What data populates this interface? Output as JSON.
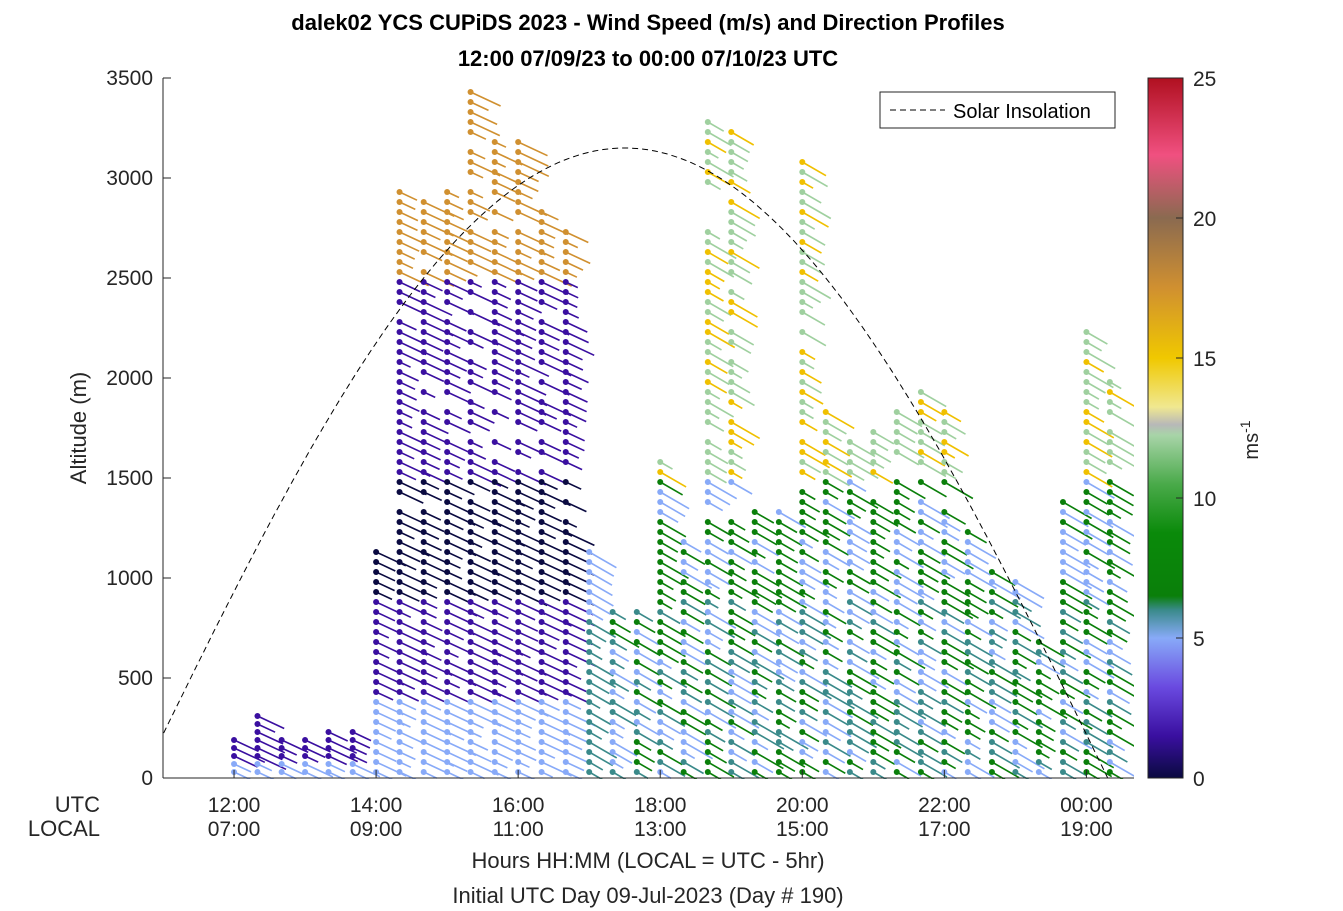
{
  "chart_data": {
    "type": "scatter",
    "title": "dalek02 YCS CUPiDS 2023 - Wind Speed (m/s) and Direction Profiles",
    "subtitle": "12:00 07/09/23 to 00:00 07/10/23  UTC",
    "ylabel": "Altitude (m)",
    "xlabel": "Hours HH:MM  (LOCAL = UTC - 5hr)",
    "xlabel2": "Initial UTC Day 09-Jul-2023 (Day # 190)",
    "row_labels": [
      "UTC",
      "LOCAL"
    ],
    "ylim": [
      0,
      3500
    ],
    "yticks": [
      "0",
      "500",
      "1000",
      "1500",
      "2000",
      "2500",
      "3000",
      "3500"
    ],
    "xticks_utc": [
      "12:00",
      "14:00",
      "16:00",
      "18:00",
      "20:00",
      "22:00",
      "00:00"
    ],
    "xticks_local": [
      "07:00",
      "09:00",
      "11:00",
      "13:00",
      "15:00",
      "17:00",
      "19:00"
    ],
    "legend": {
      "entry": "Solar Insolation",
      "placement": "top-right"
    },
    "colorbar": {
      "label": "ms-1",
      "min": 0,
      "max": 25,
      "ticks": [
        "0",
        "5",
        "10",
        "15",
        "20",
        "25"
      ]
    },
    "solar_peak_altitude": 3150,
    "profiles": [
      {
        "t": 12.0,
        "top": 200
      },
      {
        "t": 12.33,
        "top": 340
      },
      {
        "t": 12.67,
        "top": 200
      },
      {
        "t": 13.0,
        "top": 200
      },
      {
        "t": 13.33,
        "top": 250
      },
      {
        "t": 13.67,
        "top": 250
      },
      {
        "t": 14.0,
        "top": 1170
      },
      {
        "t": 14.33,
        "top": 2950
      },
      {
        "t": 14.67,
        "top": 2900
      },
      {
        "t": 15.0,
        "top": 2950
      },
      {
        "t": 15.33,
        "top": 3430
      },
      {
        "t": 15.67,
        "top": 3200
      },
      {
        "t": 16.0,
        "top": 3200
      },
      {
        "t": 16.33,
        "top": 2850
      },
      {
        "t": 16.67,
        "top": 2750
      },
      {
        "t": 17.0,
        "top": 1150
      },
      {
        "t": 17.33,
        "top": 870
      },
      {
        "t": 17.67,
        "top": 830
      },
      {
        "t": 18.0,
        "top": 1600
      },
      {
        "t": 18.33,
        "top": 1200
      },
      {
        "t": 18.67,
        "top": 3280
      },
      {
        "t": 19.0,
        "top": 3230
      },
      {
        "t": 19.33,
        "top": 1350
      },
      {
        "t": 19.67,
        "top": 1350
      },
      {
        "t": 20.0,
        "top": 3100
      },
      {
        "t": 20.33,
        "top": 1850
      },
      {
        "t": 20.67,
        "top": 1700
      },
      {
        "t": 21.0,
        "top": 1750
      },
      {
        "t": 21.33,
        "top": 1850
      },
      {
        "t": 21.67,
        "top": 1970
      },
      {
        "t": 22.0,
        "top": 1850
      },
      {
        "t": 22.33,
        "top": 1250
      },
      {
        "t": 22.67,
        "top": 1050
      },
      {
        "t": 23.0,
        "top": 980
      },
      {
        "t": 23.33,
        "top": 700
      },
      {
        "t": 23.67,
        "top": 1400
      },
      {
        "t": 24.0,
        "top": 2230
      },
      {
        "t": 24.33,
        "top": 2000
      }
    ]
  },
  "colors": {
    "axis": "#262626",
    "solar_line": "#000000",
    "colormap": [
      "#0a0a40",
      "#3a0fa0",
      "#6a4ae0",
      "#88aaf8",
      "#3a8a8a",
      "#0a7f0a",
      "#2e9e2e",
      "#9fd09f",
      "#f0e060",
      "#f0c000",
      "#d09030",
      "#906040",
      "#f05080",
      "#b01020"
    ]
  }
}
